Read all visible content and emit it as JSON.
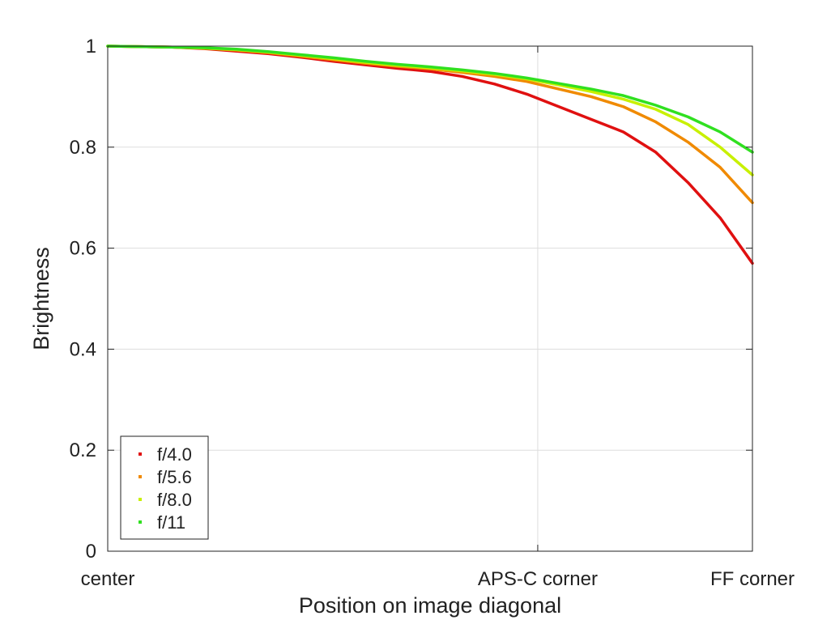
{
  "chart_data": {
    "type": "line",
    "title": "",
    "xlabel": "Position on image diagonal",
    "ylabel": "Brightness",
    "xlim": [
      0,
      1
    ],
    "ylim": [
      0,
      1
    ],
    "x_ticks": [
      {
        "value": 0.0,
        "label": "center"
      },
      {
        "value": 0.667,
        "label": "APS-C corner"
      },
      {
        "value": 1.0,
        "label": "FF corner"
      }
    ],
    "y_ticks": [
      {
        "value": 0,
        "label": "0"
      },
      {
        "value": 0.2,
        "label": "0.2"
      },
      {
        "value": 0.4,
        "label": "0.4"
      },
      {
        "value": 0.6,
        "label": "0.6"
      },
      {
        "value": 0.8,
        "label": "0.8"
      },
      {
        "value": 1.0,
        "label": "1"
      }
    ],
    "grid": true,
    "legend_position": "bottom-left",
    "series": [
      {
        "name": "f/4.0",
        "color": "#e01010",
        "x": [
          0,
          0.05,
          0.1,
          0.15,
          0.2,
          0.25,
          0.3,
          0.35,
          0.4,
          0.45,
          0.5,
          0.55,
          0.6,
          0.65,
          0.7,
          0.75,
          0.8,
          0.85,
          0.9,
          0.95,
          1.0
        ],
        "y": [
          1.0,
          0.999,
          0.998,
          0.995,
          0.99,
          0.985,
          0.978,
          0.97,
          0.963,
          0.956,
          0.95,
          0.94,
          0.925,
          0.905,
          0.88,
          0.855,
          0.83,
          0.79,
          0.73,
          0.66,
          0.57
        ]
      },
      {
        "name": "f/5.6",
        "color": "#f08a00",
        "x": [
          0,
          0.05,
          0.1,
          0.15,
          0.2,
          0.25,
          0.3,
          0.35,
          0.4,
          0.45,
          0.5,
          0.55,
          0.6,
          0.65,
          0.7,
          0.75,
          0.8,
          0.85,
          0.9,
          0.95,
          1.0
        ],
        "y": [
          1.0,
          0.999,
          0.998,
          0.996,
          0.992,
          0.987,
          0.98,
          0.973,
          0.966,
          0.96,
          0.955,
          0.948,
          0.94,
          0.93,
          0.915,
          0.9,
          0.88,
          0.85,
          0.81,
          0.76,
          0.69
        ]
      },
      {
        "name": "f/8.0",
        "color": "#c8f000",
        "x": [
          0,
          0.05,
          0.1,
          0.15,
          0.2,
          0.25,
          0.3,
          0.35,
          0.4,
          0.45,
          0.5,
          0.55,
          0.6,
          0.65,
          0.7,
          0.75,
          0.8,
          0.85,
          0.9,
          0.95,
          1.0
        ],
        "y": [
          1.0,
          0.999,
          0.998,
          0.996,
          0.993,
          0.988,
          0.982,
          0.975,
          0.968,
          0.962,
          0.957,
          0.951,
          0.944,
          0.935,
          0.923,
          0.91,
          0.895,
          0.875,
          0.845,
          0.8,
          0.745
        ]
      },
      {
        "name": "f/11",
        "color": "#30e020",
        "x": [
          0,
          0.05,
          0.1,
          0.15,
          0.2,
          0.25,
          0.3,
          0.35,
          0.4,
          0.45,
          0.5,
          0.55,
          0.6,
          0.65,
          0.7,
          0.75,
          0.8,
          0.85,
          0.9,
          0.95,
          1.0
        ],
        "y": [
          1.0,
          0.999,
          0.998,
          0.997,
          0.994,
          0.989,
          0.983,
          0.977,
          0.97,
          0.964,
          0.959,
          0.953,
          0.946,
          0.937,
          0.926,
          0.915,
          0.902,
          0.883,
          0.86,
          0.83,
          0.79
        ]
      }
    ]
  }
}
